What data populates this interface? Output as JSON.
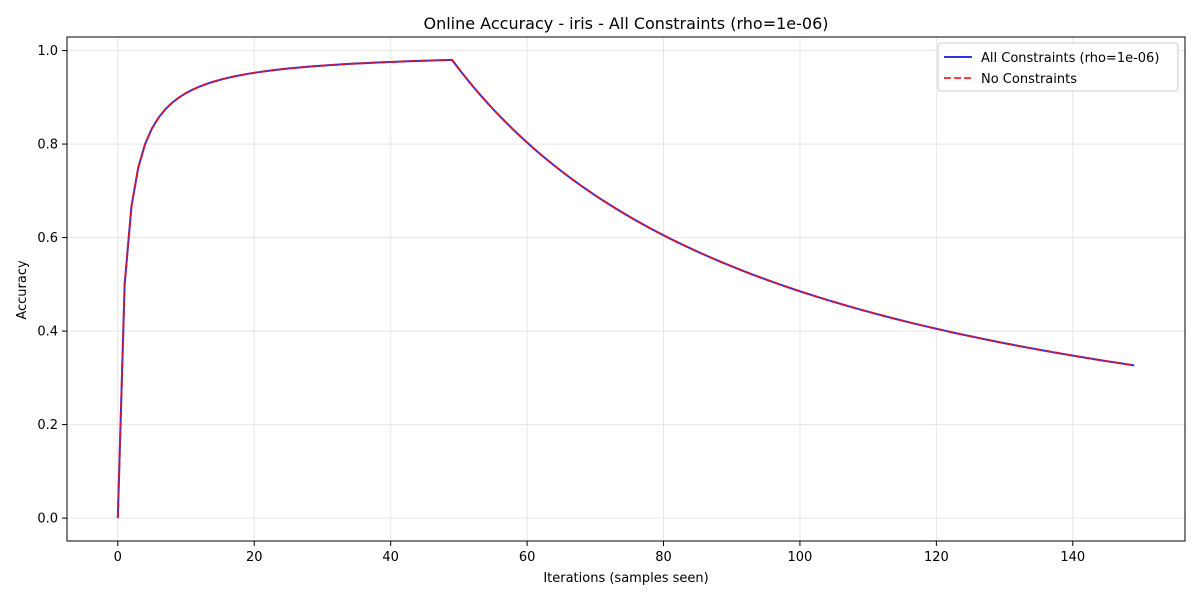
{
  "chart_data": {
    "type": "line",
    "title": "Online Accuracy - iris - All Constraints (rho=1e-06)",
    "xlabel": "Iterations (samples seen)",
    "ylabel": "Accuracy",
    "xlim": [
      -7.45,
      156.45
    ],
    "ylim": [
      -0.049,
      1.029
    ],
    "xticks": [
      0,
      20,
      40,
      60,
      80,
      100,
      120,
      140
    ],
    "yticks": [
      0.0,
      0.2,
      0.4,
      0.6,
      0.8,
      1.0
    ],
    "xtick_labels": [
      "0",
      "20",
      "40",
      "60",
      "80",
      "100",
      "120",
      "140"
    ],
    "ytick_labels": [
      "0.0",
      "0.2",
      "0.4",
      "0.6",
      "0.8",
      "1.0"
    ],
    "grid": true,
    "legend_position": "top-right",
    "series": [
      {
        "name": "All Constraints (rho=1e-06)",
        "color": "#0000dd",
        "style": "solid",
        "rule": "accuracy = c/(t+1), c = t for t <= 49 and c = 49 for t > 49",
        "x_range": [
          0,
          149
        ]
      },
      {
        "name": "No Constraints",
        "color": "#ee1111",
        "style": "dashed",
        "rule": "accuracy = c/(t+1), c = t for t <= 49 and c = 49 for t > 49",
        "x_range": [
          0,
          149
        ]
      }
    ]
  }
}
